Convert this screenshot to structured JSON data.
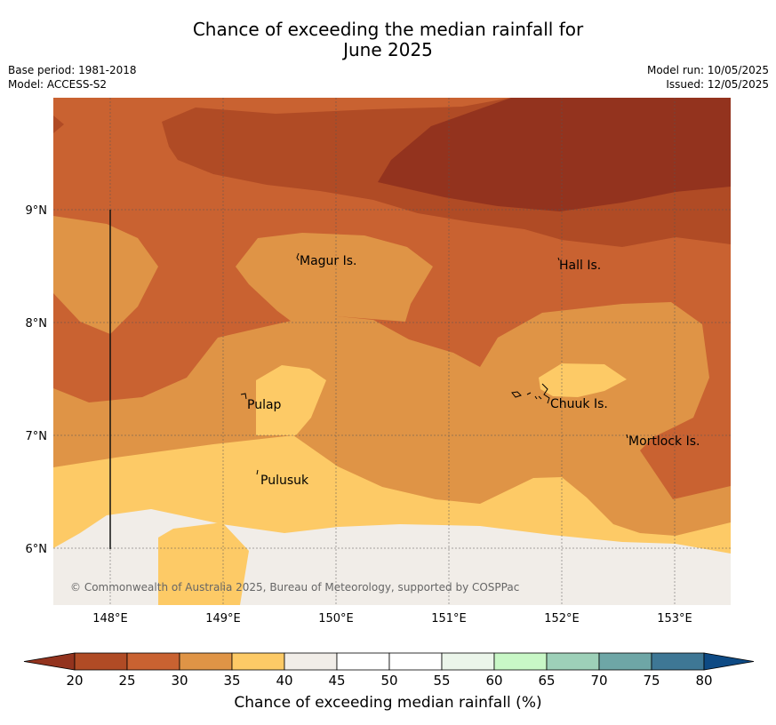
{
  "header": {
    "title_line1": "Chance of exceeding the median rainfall for",
    "title_line2": "June 2025",
    "base_period": "Base period: 1981-2018",
    "model": "Model: ACCESS-S2",
    "model_run": "Model run: 10/05/2025",
    "issued": "Issued: 12/05/2025"
  },
  "map": {
    "lon_ticks": [
      "148°E",
      "149°E",
      "150°E",
      "151°E",
      "152°E",
      "153°E"
    ],
    "lat_ticks": [
      "9°N",
      "8°N",
      "7°N",
      "6°N"
    ],
    "places": [
      {
        "name": "Magur Is."
      },
      {
        "name": "Hall Is."
      },
      {
        "name": "Pulap"
      },
      {
        "name": "Chuuk Is."
      },
      {
        "name": "Mortlock Is."
      },
      {
        "name": "Pulusuk"
      }
    ],
    "credit": "© Commonwealth of Australia 2025, Bureau of Meteorology, supported by COSPPac"
  },
  "colorbar": {
    "label": "Chance of exceeding median rainfall (%)",
    "ticks": [
      "20",
      "25",
      "30",
      "35",
      "40",
      "45",
      "50",
      "55",
      "60",
      "65",
      "70",
      "75",
      "80"
    ],
    "below_color": "#93331e",
    "above_color": "#0e4a84",
    "colors": [
      "#b04b25",
      "#c96231",
      "#df9446",
      "#fdca66",
      "#f1ede8",
      "#ffffff",
      "#ffffff",
      "#ebf5ea",
      "#c8f7c6",
      "#9dd0b8",
      "#6ea6a6",
      "#3e7795"
    ]
  }
}
